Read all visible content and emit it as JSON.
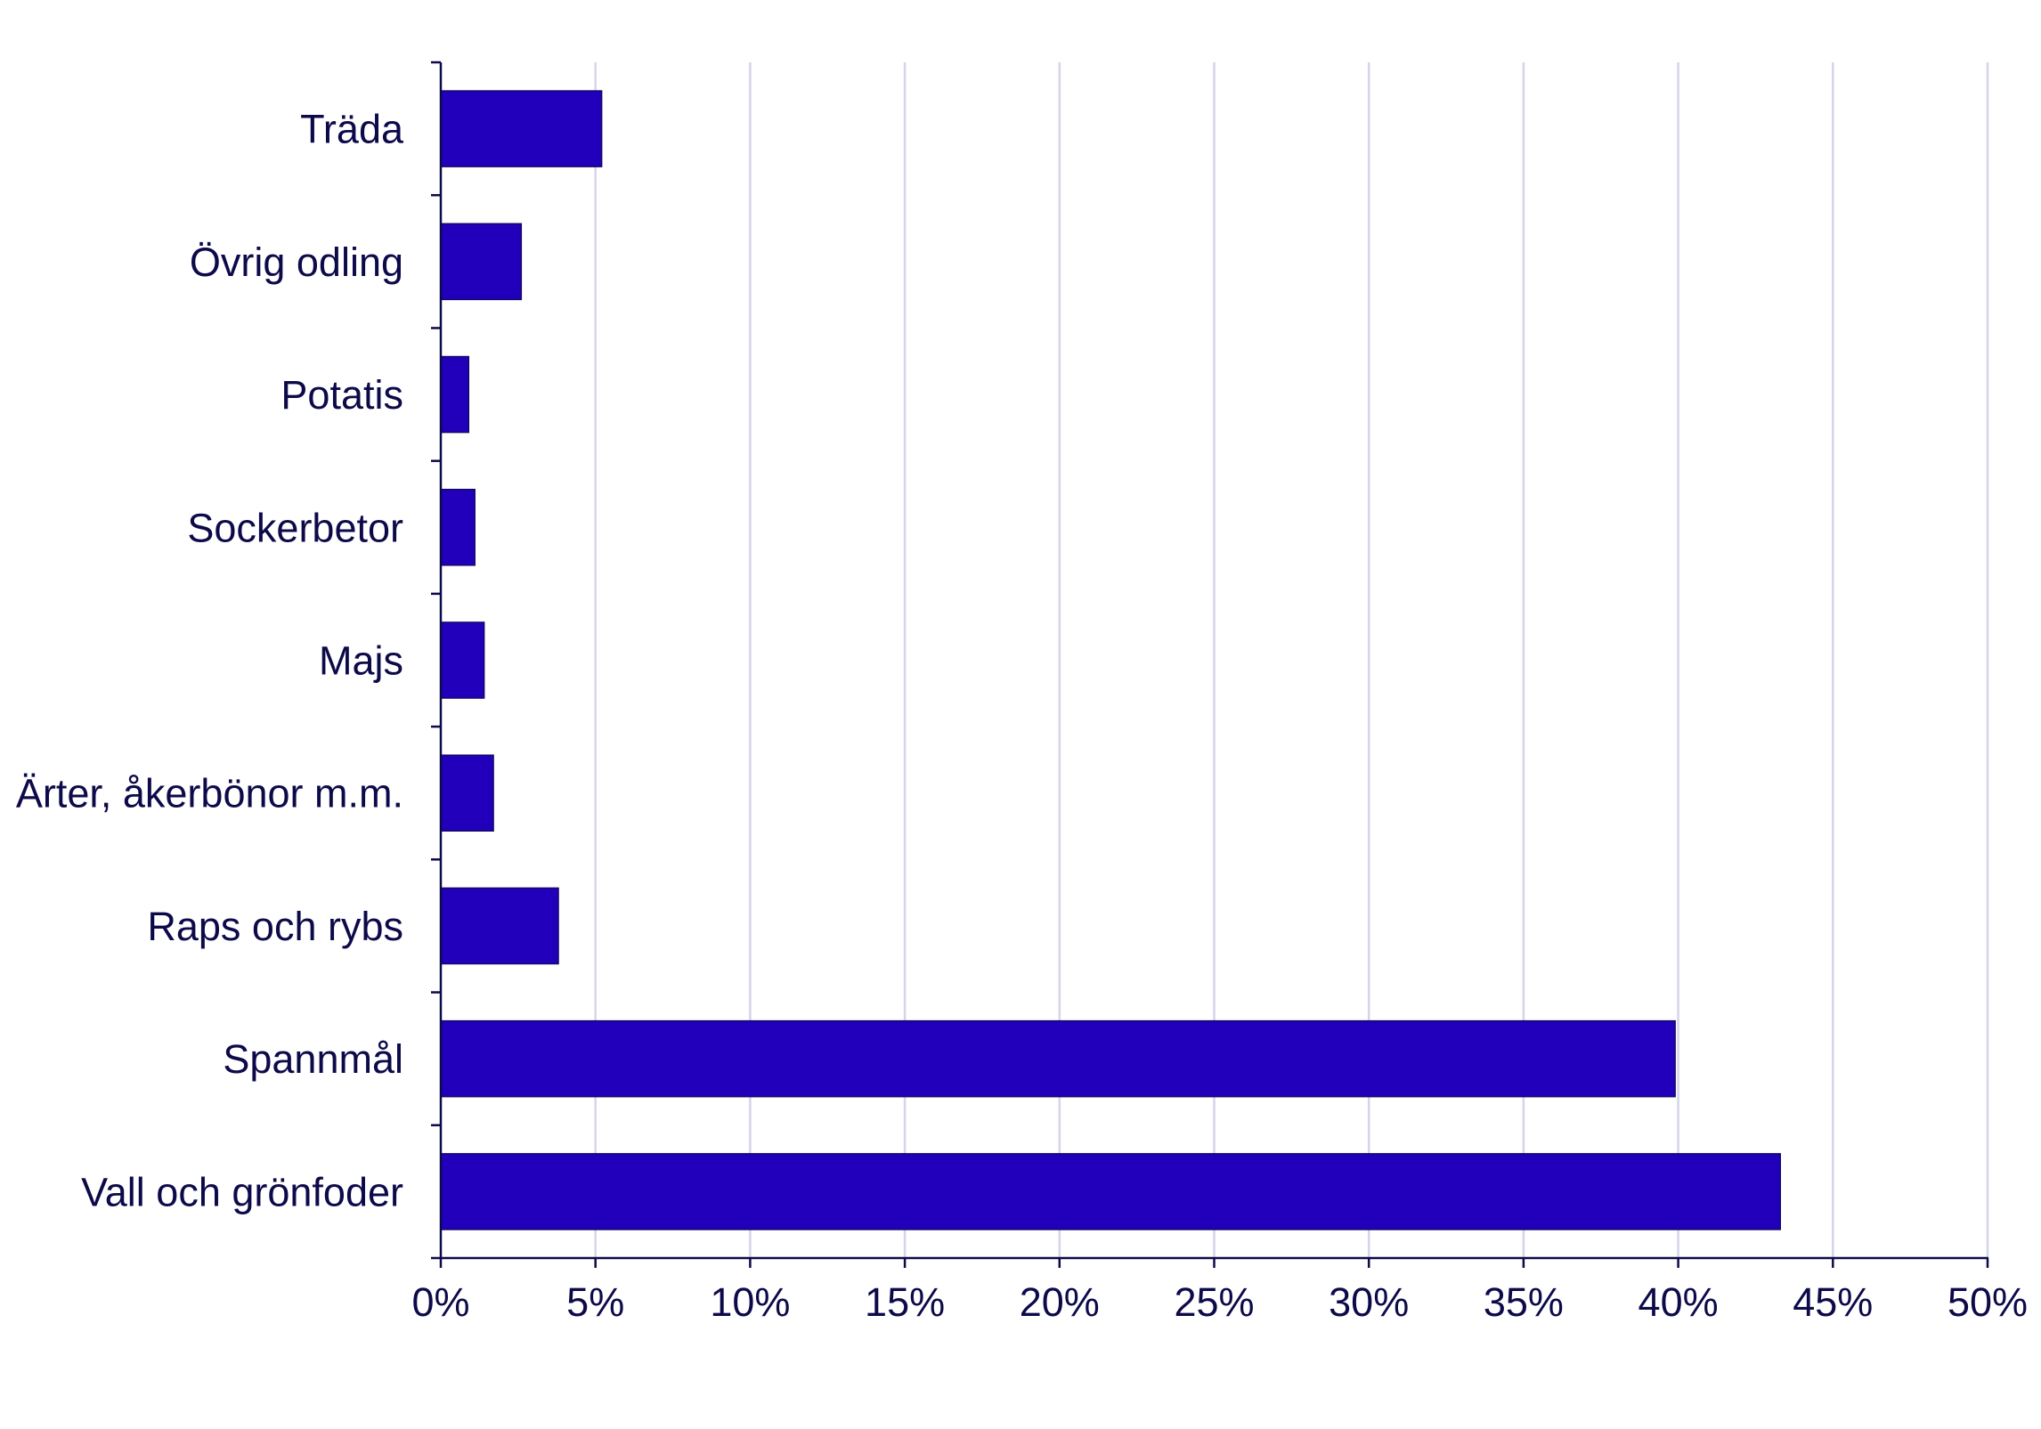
{
  "colors": {
    "bar_fill": "#2200bb",
    "bar_stroke": "#12086a",
    "grid": "#d4d4ec",
    "axis": "#0d0a4a",
    "text": "#0d0a4a",
    "background": "#ffffff"
  },
  "chart_data": {
    "type": "bar",
    "orientation": "horizontal",
    "title": "",
    "xlabel": "",
    "ylabel": "",
    "categories": [
      "Träda",
      "Övrig odling",
      "Potatis",
      "Sockerbetor",
      "Majs",
      "Ärter, åkerbönor m.m.",
      "Raps och rybs",
      "Spannmål",
      "Vall och grönfoder"
    ],
    "values": [
      5.2,
      2.6,
      0.9,
      1.1,
      1.4,
      1.7,
      3.8,
      39.9,
      43.3
    ],
    "xlim": [
      0,
      50
    ],
    "x_ticks": [
      "0%",
      "5%",
      "10%",
      "15%",
      "20%",
      "25%",
      "30%",
      "35%",
      "40%",
      "45%",
      "50%"
    ],
    "x_tick_values": [
      0,
      5,
      10,
      15,
      20,
      25,
      30,
      35,
      40,
      45,
      50
    ],
    "value_unit": "%",
    "grid": "vertical",
    "legend": "none"
  }
}
